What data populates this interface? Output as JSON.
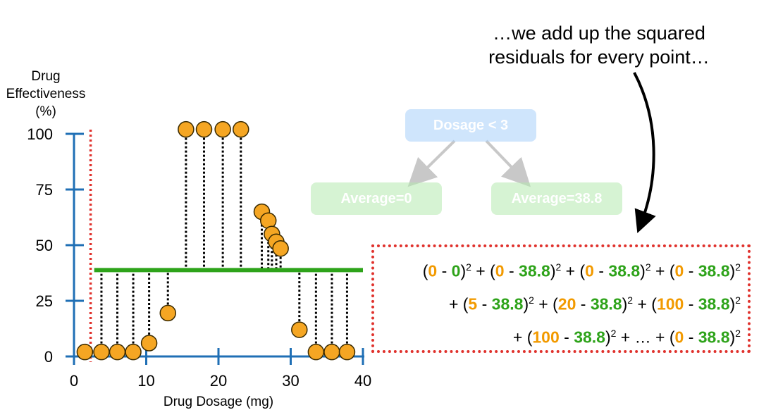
{
  "chart_data": {
    "type": "scatter",
    "xlabel": "Drug Dosage (mg)",
    "ylabel_lines": [
      "Drug",
      "Effectiveness",
      "(%)"
    ],
    "xlim": [
      0,
      40
    ],
    "ylim": [
      0,
      100
    ],
    "x_ticks": [
      "0",
      "10",
      "20",
      "30",
      "40"
    ],
    "x_tick_values": [
      0,
      10,
      20,
      30,
      40
    ],
    "y_ticks": [
      "0",
      "25",
      "50",
      "75",
      "100"
    ],
    "y_tick_values": [
      0,
      25,
      50,
      75,
      100
    ],
    "points": [
      {
        "x": 1.5,
        "y": 2
      },
      {
        "x": 3.8,
        "y": 2
      },
      {
        "x": 6.0,
        "y": 2
      },
      {
        "x": 8.2,
        "y": 2
      },
      {
        "x": 10.4,
        "y": 6
      },
      {
        "x": 13.0,
        "y": 19.5
      },
      {
        "x": 15.5,
        "y": 102
      },
      {
        "x": 18.0,
        "y": 102
      },
      {
        "x": 20.6,
        "y": 102
      },
      {
        "x": 23.1,
        "y": 102
      },
      {
        "x": 26.0,
        "y": 65
      },
      {
        "x": 26.9,
        "y": 61
      },
      {
        "x": 27.4,
        "y": 55
      },
      {
        "x": 28.0,
        "y": 51.5
      },
      {
        "x": 28.6,
        "y": 48.5
      },
      {
        "x": 31.2,
        "y": 12
      },
      {
        "x": 33.5,
        "y": 2
      },
      {
        "x": 35.7,
        "y": 2
      },
      {
        "x": 37.8,
        "y": 2
      }
    ],
    "split_x": 2.3,
    "average_line": {
      "y": 38.8,
      "x_start": 2.8,
      "x_end": 40
    },
    "colors": {
      "axis": "#1f6fb5",
      "point_fill": "#f5a623",
      "point_stroke": "#3a2a00",
      "average_line": "#2ea31a",
      "split_line": "#e0322d",
      "residual": "#000000"
    }
  },
  "caption": {
    "line1": "…we add up the squared",
    "line2": "residuals for every point…"
  },
  "tree": {
    "root": "Dosage < 3",
    "left_leaf": "Average=0",
    "right_leaf": "Average=38.8",
    "colors": {
      "root": "#a8d0fb",
      "leaf": "#b5eab0",
      "arrow": "#c8c8c8"
    }
  },
  "equation": {
    "line1": [
      {
        "t": "(",
        "c": ""
      },
      {
        "t": "0",
        "c": "o"
      },
      {
        "t": " - ",
        "c": ""
      },
      {
        "t": "0",
        "c": "g"
      },
      {
        "t": ")",
        "c": ""
      },
      {
        "t": "2",
        "c": "sup"
      },
      {
        "t": " + (",
        "c": ""
      },
      {
        "t": "0",
        "c": "o"
      },
      {
        "t": " - ",
        "c": ""
      },
      {
        "t": "38.8",
        "c": "g"
      },
      {
        "t": ")",
        "c": ""
      },
      {
        "t": "2",
        "c": "sup"
      },
      {
        "t": " + (",
        "c": ""
      },
      {
        "t": "0",
        "c": "o"
      },
      {
        "t": " - ",
        "c": ""
      },
      {
        "t": "38.8",
        "c": "g"
      },
      {
        "t": ")",
        "c": ""
      },
      {
        "t": "2",
        "c": "sup"
      },
      {
        "t": " + (",
        "c": ""
      },
      {
        "t": "0",
        "c": "o"
      },
      {
        "t": " - ",
        "c": ""
      },
      {
        "t": "38.8",
        "c": "g"
      },
      {
        "t": ")",
        "c": ""
      },
      {
        "t": "2",
        "c": "sup"
      }
    ],
    "line2": [
      {
        "t": "+ (",
        "c": ""
      },
      {
        "t": "5",
        "c": "o"
      },
      {
        "t": " - ",
        "c": ""
      },
      {
        "t": "38.8",
        "c": "g"
      },
      {
        "t": ")",
        "c": ""
      },
      {
        "t": "2",
        "c": "sup"
      },
      {
        "t": " + (",
        "c": ""
      },
      {
        "t": "20",
        "c": "o"
      },
      {
        "t": " - ",
        "c": ""
      },
      {
        "t": "38.8",
        "c": "g"
      },
      {
        "t": ")",
        "c": ""
      },
      {
        "t": "2",
        "c": "sup"
      },
      {
        "t": " + (",
        "c": ""
      },
      {
        "t": "100",
        "c": "o"
      },
      {
        "t": " - ",
        "c": ""
      },
      {
        "t": "38.8",
        "c": "g"
      },
      {
        "t": ")",
        "c": ""
      },
      {
        "t": "2",
        "c": "sup"
      }
    ],
    "line3": [
      {
        "t": "+ (",
        "c": ""
      },
      {
        "t": "100",
        "c": "o"
      },
      {
        "t": " - ",
        "c": ""
      },
      {
        "t": "38.8",
        "c": "g"
      },
      {
        "t": ")",
        "c": ""
      },
      {
        "t": "2",
        "c": "sup"
      },
      {
        "t": " + … + (",
        "c": ""
      },
      {
        "t": "0",
        "c": "o"
      },
      {
        "t": " - ",
        "c": ""
      },
      {
        "t": "38.8",
        "c": "g"
      },
      {
        "t": ")",
        "c": ""
      },
      {
        "t": "2",
        "c": "sup"
      }
    ]
  }
}
